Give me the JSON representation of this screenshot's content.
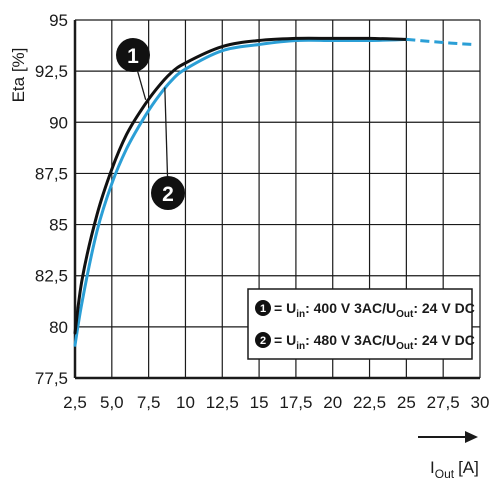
{
  "chart_data": {
    "type": "line",
    "ylabel": "Eta [%]",
    "xlabel": "I",
    "xlabel_sub": "Out",
    "xlabel_unit": "[A]",
    "xlim": [
      2.5,
      30
    ],
    "ylim": [
      77.5,
      95
    ],
    "x_ticks": [
      "2,5",
      "5,0",
      "7,5",
      "10",
      "12,5",
      "15",
      "17,5",
      "20",
      "22,5",
      "25",
      "27,5",
      "30"
    ],
    "y_ticks": [
      "95",
      "92,5",
      "90",
      "87,5",
      "85",
      "82,5",
      "80",
      "77,5"
    ],
    "grid": true,
    "colors": {
      "series1": "#111111",
      "series2": "#2b9fd6",
      "grid": "#1a1a1a"
    },
    "series": [
      {
        "marker": "1",
        "x": [
          2.5,
          3,
          4,
          5,
          6,
          7,
          8,
          9,
          10,
          12.5,
          15,
          17.5,
          20,
          22.5,
          25
        ],
        "values": [
          79.7,
          82.4,
          85.5,
          87.7,
          89.4,
          90.6,
          91.6,
          92.4,
          92.9,
          93.7,
          94.0,
          94.1,
          94.1,
          94.1,
          94.05
        ],
        "extrapolated_x": [
          25,
          27.5,
          29.5
        ],
        "extrapolated_values": [
          94.05,
          93.9,
          93.8
        ]
      },
      {
        "marker": "2",
        "x": [
          2.5,
          3,
          4,
          5,
          6,
          7,
          8,
          9,
          10,
          12.5,
          15,
          17.5,
          20,
          22.5,
          25
        ],
        "values": [
          79.1,
          81.3,
          84.7,
          87.0,
          88.7,
          90.0,
          91.1,
          92.0,
          92.6,
          93.5,
          93.8,
          94.0,
          94.0,
          94.0,
          94.05
        ],
        "extrapolated_x": [
          25,
          27.5,
          29.5
        ],
        "extrapolated_values": [
          94.05,
          93.9,
          93.8
        ]
      }
    ],
    "legend": {
      "placement": "bottom-right",
      "items": [
        {
          "num": "1",
          "pre": "= U",
          "sub1": "in",
          "mid": ": 400 V 3AC/U",
          "sub2": "Out",
          "post": ": 24 V DC"
        },
        {
          "num": "2",
          "pre": "= U",
          "sub1": "in",
          "mid": ": 480 V 3AC/U",
          "sub2": "Out",
          "post": ": 24 V DC"
        }
      ]
    }
  }
}
